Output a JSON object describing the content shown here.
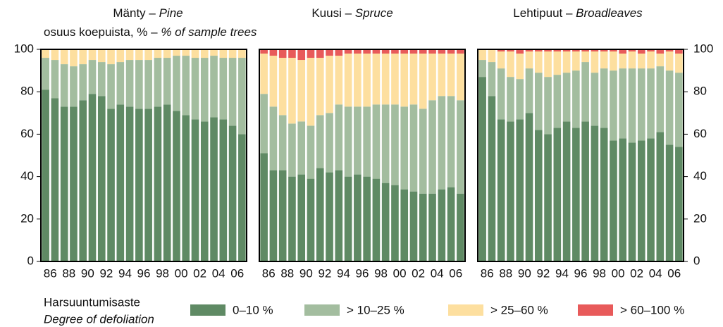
{
  "ylabel": {
    "fi": "osuus koepuista, % –",
    "en": "% of sample trees"
  },
  "legend_title": {
    "fi": "Harsuuntumisaste",
    "en": "Degree of defoliation"
  },
  "chart_data": [
    {
      "type": "stacked_bar",
      "title": {
        "fi": "Mänty –",
        "en": "Pine"
      },
      "categories": [
        "86",
        null,
        "88",
        null,
        "90",
        null,
        "92",
        null,
        "94",
        null,
        "96",
        null,
        "98",
        null,
        "00",
        null,
        "02",
        null,
        "04",
        null,
        "06",
        null
      ],
      "ylim": [
        0,
        100
      ],
      "yticks": [
        0,
        20,
        40,
        60,
        80,
        100
      ],
      "yaxis_side": "left",
      "series": [
        {
          "name": "0–10 %",
          "color": "#5f8a64",
          "values": [
            81,
            77,
            73,
            73,
            76,
            79,
            78,
            72,
            74,
            73,
            72,
            72,
            73,
            74,
            71,
            69,
            67,
            66,
            68,
            67,
            64,
            60
          ]
        },
        {
          "name": "> 10–25 %",
          "color": "#a3bd9f",
          "values": [
            15,
            18,
            20,
            19,
            17,
            16,
            16,
            21,
            20,
            22,
            23,
            23,
            23,
            22,
            26,
            28,
            29,
            30,
            29,
            29,
            32,
            36
          ]
        },
        {
          "name": "> 25–60 %",
          "color": "#fddf9f",
          "values": [
            4,
            5,
            7,
            8,
            7,
            5,
            6,
            7,
            6,
            5,
            5,
            5,
            4,
            4,
            3,
            3,
            4,
            4,
            3,
            4,
            4,
            4
          ]
        },
        {
          "name": "> 60–100 %",
          "color": "#e85a5a",
          "values": [
            0,
            0,
            0,
            0,
            0,
            0,
            0,
            0,
            0,
            0,
            0,
            0,
            0,
            0,
            0,
            0,
            0,
            0,
            0,
            0,
            0,
            0
          ]
        }
      ]
    },
    {
      "type": "stacked_bar",
      "title": {
        "fi": "Kuusi –",
        "en": "Spruce"
      },
      "categories": [
        "86",
        null,
        "88",
        null,
        "90",
        null,
        "92",
        null,
        "94",
        null,
        "96",
        null,
        "98",
        null,
        "00",
        null,
        "02",
        null,
        "04",
        null,
        "06",
        null
      ],
      "ylim": [
        0,
        100
      ],
      "series": [
        {
          "name": "0–10 %",
          "color": "#5f8a64",
          "values": [
            51,
            43,
            43,
            40,
            41,
            39,
            44,
            42,
            43,
            40,
            41,
            40,
            39,
            37,
            36,
            34,
            33,
            32,
            32,
            34,
            35,
            32
          ]
        },
        {
          "name": "> 10–25 %",
          "color": "#a3bd9f",
          "values": [
            28,
            30,
            26,
            25,
            25,
            25,
            25,
            28,
            31,
            33,
            32,
            33,
            35,
            37,
            38,
            39,
            41,
            40,
            44,
            44,
            43,
            44
          ]
        },
        {
          "name": "> 25–60 %",
          "color": "#fddf9f",
          "values": [
            19,
            24,
            27,
            31,
            29,
            32,
            27,
            27,
            23,
            25,
            25,
            25,
            24,
            24,
            24,
            25,
            24,
            26,
            22,
            20,
            20,
            22
          ]
        },
        {
          "name": "> 60–100 %",
          "color": "#e85a5a",
          "values": [
            2,
            3,
            4,
            4,
            5,
            4,
            4,
            3,
            3,
            2,
            2,
            2,
            2,
            2,
            2,
            2,
            2,
            2,
            2,
            2,
            2,
            2
          ]
        }
      ]
    },
    {
      "type": "stacked_bar",
      "title": {
        "fi": "Lehtipuut –",
        "en": "Broadleaves"
      },
      "categories": [
        "86",
        null,
        "88",
        null,
        "90",
        null,
        "92",
        null,
        "94",
        null,
        "96",
        null,
        "98",
        null,
        "00",
        null,
        "02",
        null,
        "04",
        null,
        "06",
        null
      ],
      "ylim": [
        0,
        100
      ],
      "yticks": [
        0,
        20,
        40,
        60,
        80,
        100
      ],
      "yaxis_side": "right",
      "series": [
        {
          "name": "0–10 %",
          "color": "#5f8a64",
          "values": [
            87,
            78,
            67,
            66,
            67,
            70,
            62,
            60,
            63,
            66,
            63,
            66,
            64,
            63,
            57,
            58,
            56,
            57,
            58,
            61,
            55,
            54
          ]
        },
        {
          "name": "> 10–25 %",
          "color": "#a3bd9f",
          "values": [
            8,
            16,
            24,
            21,
            19,
            21,
            27,
            27,
            25,
            23,
            27,
            28,
            25,
            28,
            33,
            33,
            35,
            34,
            33,
            31,
            35,
            35
          ]
        },
        {
          "name": "> 25–60 %",
          "color": "#fddf9f",
          "values": [
            5,
            6,
            8,
            12,
            12,
            8,
            10,
            12,
            11,
            10,
            9,
            5,
            10,
            8,
            9,
            7,
            8,
            7,
            8,
            6,
            9,
            9
          ]
        },
        {
          "name": "> 60–100 %",
          "color": "#e85a5a",
          "values": [
            0,
            0,
            1,
            1,
            2,
            1,
            1,
            1,
            1,
            1,
            1,
            1,
            1,
            1,
            1,
            2,
            1,
            2,
            1,
            2,
            1,
            2
          ]
        }
      ]
    }
  ]
}
